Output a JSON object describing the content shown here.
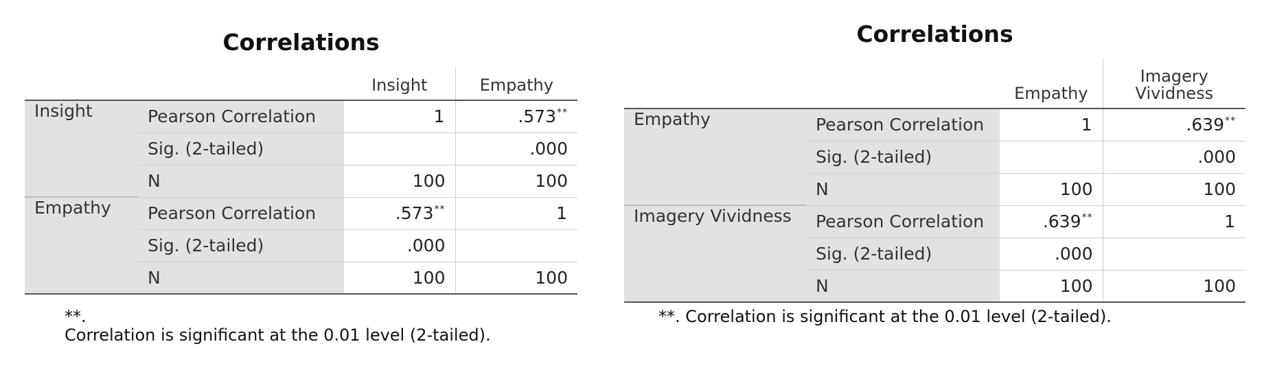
{
  "left_table": {
    "title": "Correlations",
    "columns": [
      "Insight",
      "Empathy"
    ],
    "rows": [
      {
        "variable": "Insight",
        "stats": [
          {
            "label": "Pearson Correlation",
            "values": [
              "1",
              ".573"
            ],
            "stars": [
              "",
              "**"
            ]
          },
          {
            "label": "Sig. (2-tailed)",
            "values": [
              "",
              ".000"
            ],
            "stars": [
              "",
              ""
            ]
          },
          {
            "label": "N",
            "values": [
              "100",
              "100"
            ],
            "stars": [
              "",
              ""
            ]
          }
        ]
      },
      {
        "variable": "Empathy",
        "stats": [
          {
            "label": "Pearson Correlation",
            "values": [
              ".573",
              "1"
            ],
            "stars": [
              "**",
              ""
            ]
          },
          {
            "label": "Sig. (2-tailed)",
            "values": [
              ".000",
              ""
            ],
            "stars": [
              "",
              ""
            ]
          },
          {
            "label": "N",
            "values": [
              "100",
              "100"
            ],
            "stars": [
              "",
              ""
            ]
          }
        ]
      }
    ],
    "footnote_marker": "**.",
    "footnote": "Correlation is significant at the 0.01 level (2-tailed)."
  },
  "right_table": {
    "title": "Correlations",
    "columns": [
      "Empathy",
      "Imagery Vividness"
    ],
    "rows": [
      {
        "variable": "Empathy",
        "stats": [
          {
            "label": "Pearson Correlation",
            "values": [
              "1",
              ".639"
            ],
            "stars": [
              "",
              "**"
            ]
          },
          {
            "label": "Sig. (2-tailed)",
            "values": [
              "",
              ".000"
            ],
            "stars": [
              "",
              ""
            ]
          },
          {
            "label": "N",
            "values": [
              "100",
              "100"
            ],
            "stars": [
              "",
              ""
            ]
          }
        ]
      },
      {
        "variable": "Imagery Vividness",
        "stats": [
          {
            "label": "Pearson Correlation",
            "values": [
              ".639",
              "1"
            ],
            "stars": [
              "**",
              ""
            ]
          },
          {
            "label": "Sig. (2-tailed)",
            "values": [
              ".000",
              ""
            ],
            "stars": [
              "",
              ""
            ]
          },
          {
            "label": "N",
            "values": [
              "100",
              "100"
            ],
            "stars": [
              "",
              ""
            ]
          }
        ]
      }
    ],
    "footnote_marker": "**.",
    "footnote": "Correlation is significant at the 0.01 level (2-tailed)."
  }
}
